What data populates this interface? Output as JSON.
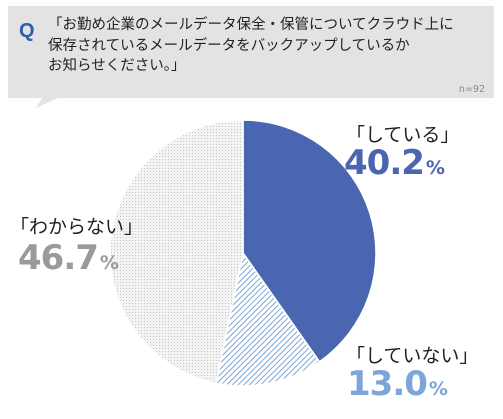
{
  "question": {
    "mark": "Q",
    "text": "「お勤め企業のメールデータ保全・保管についてクラウド上に\n保存されているメールデータをバックアップしているか\nお知らせください。」"
  },
  "sample_size": "n=92",
  "colors": {
    "bubble": "#e3e3e3",
    "doing": "#4a66b0",
    "not_doing": "#7da6d6",
    "unknown": "#9a9a9a"
  },
  "chart_data": {
    "type": "pie",
    "title": "",
    "slices": [
      {
        "label": "「している」",
        "value": 40.2,
        "value_text": "40.2",
        "unit": "%",
        "color": "#4a66b0",
        "fill": "solid"
      },
      {
        "label": "「していない」",
        "value": 13.0,
        "value_text": "13.0",
        "unit": "%",
        "color": "#7da6d6",
        "fill": "hatched"
      },
      {
        "label": "「わからない」",
        "value": 46.7,
        "value_text": "46.7",
        "unit": "%",
        "color": "#9a9a9a",
        "fill": "dotted"
      }
    ]
  }
}
